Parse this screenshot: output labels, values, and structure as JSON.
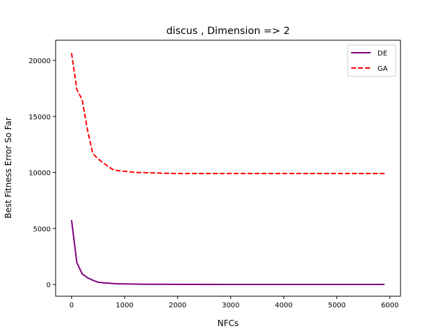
{
  "chart_data": {
    "type": "line",
    "title": "discus , Dimension => 2",
    "xlabel": "NFCs",
    "ylabel": "Best Fitness Error So Far",
    "xlim": [
      -300,
      6200
    ],
    "ylim": [
      -1050,
      21800
    ],
    "xticks": [
      0,
      1000,
      2000,
      3000,
      4000,
      5000,
      6000
    ],
    "yticks": [
      0,
      5000,
      10000,
      15000,
      20000
    ],
    "xtick_labels": [
      "0",
      "1000",
      "2000",
      "3000",
      "4000",
      "5000",
      "6000"
    ],
    "ytick_labels": [
      "0",
      "5000",
      "10000",
      "15000",
      "20000"
    ],
    "grid": false,
    "legend_position": "top-right",
    "series": [
      {
        "name": "DE",
        "color": "#800080",
        "style": "solid",
        "x": [
          0,
          100,
          200,
          300,
          400,
          500,
          600,
          700,
          800,
          900,
          1000,
          1200,
          1400,
          1600,
          2000,
          3000,
          4000,
          5000,
          5900
        ],
        "y": [
          5750,
          1950,
          950,
          600,
          380,
          200,
          150,
          120,
          80,
          60,
          50,
          30,
          20,
          15,
          10,
          5,
          5,
          5,
          5
        ]
      },
      {
        "name": "GA",
        "color": "#ff0000",
        "style": "dashed",
        "x": [
          0,
          100,
          200,
          300,
          400,
          500,
          600,
          700,
          800,
          900,
          1000,
          1200,
          1400,
          1600,
          1800,
          2000,
          3000,
          4000,
          5000,
          5900
        ],
        "y": [
          20650,
          17400,
          16500,
          13800,
          11700,
          11200,
          10850,
          10500,
          10200,
          10150,
          10100,
          10000,
          9980,
          9950,
          9920,
          9900,
          9900,
          9900,
          9900,
          9900
        ]
      }
    ]
  }
}
